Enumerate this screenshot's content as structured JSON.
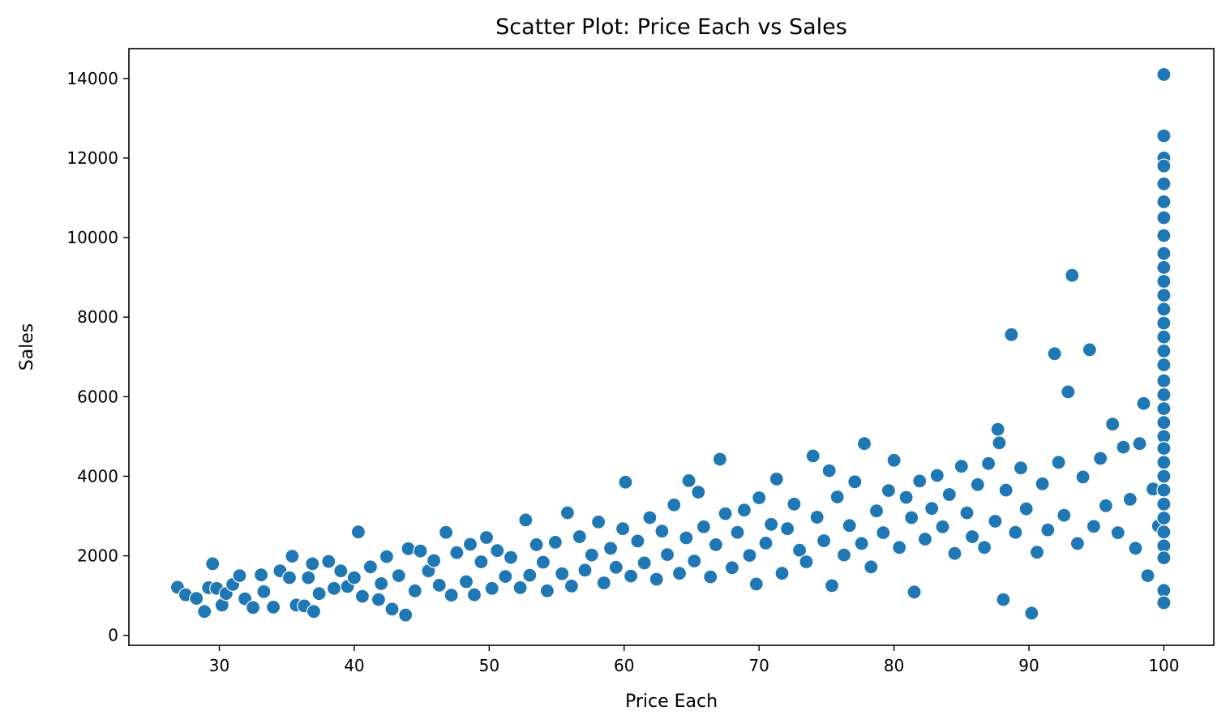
{
  "chart_data": {
    "type": "scatter",
    "title": "Scatter Plot: Price Each vs Sales",
    "xlabel": "Price Each",
    "ylabel": "Sales",
    "xlim": [
      23.3,
      103.7
    ],
    "ylim": [
      -250,
      14750
    ],
    "xticks": [
      30,
      40,
      50,
      60,
      70,
      80,
      90,
      100
    ],
    "yticks": [
      0,
      2000,
      4000,
      6000,
      8000,
      10000,
      12000,
      14000
    ],
    "grid": false,
    "marker_color": "#1f77b4",
    "marker_edge_color": "#ffffff",
    "points": [
      [
        26.9,
        1210
      ],
      [
        27.5,
        1020
      ],
      [
        28.3,
        930
      ],
      [
        28.9,
        600
      ],
      [
        29.2,
        1200
      ],
      [
        29.5,
        1800
      ],
      [
        29.8,
        1180
      ],
      [
        30.2,
        760
      ],
      [
        30.5,
        1050
      ],
      [
        31.0,
        1280
      ],
      [
        31.5,
        1500
      ],
      [
        31.9,
        920
      ],
      [
        32.5,
        700
      ],
      [
        33.1,
        1520
      ],
      [
        33.3,
        1100
      ],
      [
        34.0,
        710
      ],
      [
        34.5,
        1620
      ],
      [
        35.2,
        1450
      ],
      [
        35.4,
        1990
      ],
      [
        35.7,
        760
      ],
      [
        36.3,
        740
      ],
      [
        36.6,
        1450
      ],
      [
        36.9,
        1800
      ],
      [
        37.0,
        600
      ],
      [
        37.4,
        1050
      ],
      [
        38.1,
        1860
      ],
      [
        38.5,
        1180
      ],
      [
        39.0,
        1620
      ],
      [
        39.5,
        1230
      ],
      [
        40.0,
        1450
      ],
      [
        40.3,
        2600
      ],
      [
        40.6,
        980
      ],
      [
        41.2,
        1720
      ],
      [
        41.8,
        900
      ],
      [
        42.0,
        1300
      ],
      [
        42.4,
        1980
      ],
      [
        42.8,
        660
      ],
      [
        43.3,
        1500
      ],
      [
        43.8,
        510
      ],
      [
        44.0,
        2180
      ],
      [
        44.5,
        1120
      ],
      [
        44.9,
        2120
      ],
      [
        45.5,
        1620
      ],
      [
        45.9,
        1880
      ],
      [
        46.3,
        1260
      ],
      [
        46.8,
        2590
      ],
      [
        47.2,
        1010
      ],
      [
        47.6,
        2080
      ],
      [
        48.3,
        1350
      ],
      [
        48.6,
        2290
      ],
      [
        48.9,
        1020
      ],
      [
        49.4,
        1850
      ],
      [
        49.8,
        2460
      ],
      [
        50.2,
        1180
      ],
      [
        50.6,
        2130
      ],
      [
        51.2,
        1480
      ],
      [
        51.6,
        1960
      ],
      [
        52.3,
        1200
      ],
      [
        52.7,
        2900
      ],
      [
        53.0,
        1510
      ],
      [
        53.5,
        2280
      ],
      [
        54.0,
        1840
      ],
      [
        54.3,
        1120
      ],
      [
        54.9,
        2340
      ],
      [
        55.4,
        1550
      ],
      [
        55.8,
        3080
      ],
      [
        56.1,
        1240
      ],
      [
        56.7,
        2480
      ],
      [
        57.1,
        1640
      ],
      [
        57.6,
        2020
      ],
      [
        58.1,
        2850
      ],
      [
        58.5,
        1320
      ],
      [
        59.0,
        2190
      ],
      [
        59.4,
        1710
      ],
      [
        59.9,
        2680
      ],
      [
        60.1,
        3850
      ],
      [
        60.5,
        1490
      ],
      [
        61.0,
        2370
      ],
      [
        61.5,
        1820
      ],
      [
        61.9,
        2960
      ],
      [
        62.4,
        1410
      ],
      [
        62.8,
        2620
      ],
      [
        63.2,
        2030
      ],
      [
        63.7,
        3280
      ],
      [
        64.1,
        1560
      ],
      [
        64.6,
        2450
      ],
      [
        64.8,
        3890
      ],
      [
        65.2,
        1870
      ],
      [
        65.5,
        3600
      ],
      [
        65.9,
        2730
      ],
      [
        66.4,
        1470
      ],
      [
        66.8,
        2280
      ],
      [
        67.1,
        4430
      ],
      [
        67.5,
        3060
      ],
      [
        68.0,
        1700
      ],
      [
        68.4,
        2590
      ],
      [
        68.9,
        3150
      ],
      [
        69.3,
        2010
      ],
      [
        69.8,
        1290
      ],
      [
        70.0,
        3460
      ],
      [
        70.5,
        2320
      ],
      [
        70.9,
        2790
      ],
      [
        71.3,
        3930
      ],
      [
        71.7,
        1560
      ],
      [
        72.1,
        2680
      ],
      [
        72.6,
        3300
      ],
      [
        73.0,
        2140
      ],
      [
        73.5,
        1850
      ],
      [
        74.0,
        4510
      ],
      [
        74.3,
        2970
      ],
      [
        74.8,
        2380
      ],
      [
        75.2,
        4140
      ],
      [
        75.4,
        1250
      ],
      [
        75.8,
        3480
      ],
      [
        76.3,
        2020
      ],
      [
        76.7,
        2760
      ],
      [
        77.1,
        3860
      ],
      [
        77.6,
        2310
      ],
      [
        77.8,
        4820
      ],
      [
        78.3,
        1720
      ],
      [
        78.7,
        3130
      ],
      [
        79.2,
        2580
      ],
      [
        79.6,
        3640
      ],
      [
        80.0,
        4400
      ],
      [
        80.4,
        2210
      ],
      [
        80.9,
        3470
      ],
      [
        81.3,
        2960
      ],
      [
        81.5,
        1090
      ],
      [
        81.9,
        3880
      ],
      [
        82.3,
        2420
      ],
      [
        82.8,
        3190
      ],
      [
        83.2,
        4020
      ],
      [
        83.6,
        2730
      ],
      [
        84.1,
        3540
      ],
      [
        84.5,
        2060
      ],
      [
        85.0,
        4250
      ],
      [
        85.4,
        3080
      ],
      [
        85.8,
        2480
      ],
      [
        86.2,
        3790
      ],
      [
        86.7,
        2210
      ],
      [
        87.0,
        4320
      ],
      [
        87.5,
        2870
      ],
      [
        87.7,
        5180
      ],
      [
        87.8,
        4840
      ],
      [
        88.1,
        900
      ],
      [
        88.3,
        3650
      ],
      [
        88.7,
        7560
      ],
      [
        89.0,
        2590
      ],
      [
        89.4,
        4210
      ],
      [
        89.8,
        3180
      ],
      [
        90.2,
        560
      ],
      [
        90.6,
        2090
      ],
      [
        91.0,
        3810
      ],
      [
        91.4,
        2650
      ],
      [
        91.9,
        7080
      ],
      [
        92.2,
        4350
      ],
      [
        92.6,
        3020
      ],
      [
        92.9,
        6120
      ],
      [
        93.2,
        9050
      ],
      [
        93.6,
        2310
      ],
      [
        94.0,
        3980
      ],
      [
        94.5,
        7180
      ],
      [
        94.8,
        2740
      ],
      [
        95.3,
        4450
      ],
      [
        95.7,
        3260
      ],
      [
        96.2,
        5310
      ],
      [
        96.6,
        2580
      ],
      [
        97.0,
        4730
      ],
      [
        97.5,
        3420
      ],
      [
        97.9,
        2190
      ],
      [
        98.2,
        4820
      ],
      [
        98.5,
        5830
      ],
      [
        98.8,
        1500
      ],
      [
        99.2,
        3680
      ],
      [
        99.6,
        2750
      ],
      [
        100,
        14100
      ],
      [
        100,
        12560
      ],
      [
        100,
        12000
      ],
      [
        100,
        11800
      ],
      [
        100,
        11350
      ],
      [
        100,
        10900
      ],
      [
        100,
        10500
      ],
      [
        100,
        10050
      ],
      [
        100,
        9600
      ],
      [
        100,
        9250
      ],
      [
        100,
        8900
      ],
      [
        100,
        8550
      ],
      [
        100,
        8200
      ],
      [
        100,
        7850
      ],
      [
        100,
        7500
      ],
      [
        100,
        7150
      ],
      [
        100,
        6800
      ],
      [
        100,
        6400
      ],
      [
        100,
        6050
      ],
      [
        100,
        5700
      ],
      [
        100,
        5350
      ],
      [
        100,
        5000
      ],
      [
        100,
        4700
      ],
      [
        100,
        4350
      ],
      [
        100,
        4000
      ],
      [
        100,
        3650
      ],
      [
        100,
        3300
      ],
      [
        100,
        2950
      ],
      [
        100,
        2600
      ],
      [
        100,
        2250
      ],
      [
        100,
        1950
      ],
      [
        100,
        1130
      ],
      [
        100,
        820
      ]
    ]
  }
}
